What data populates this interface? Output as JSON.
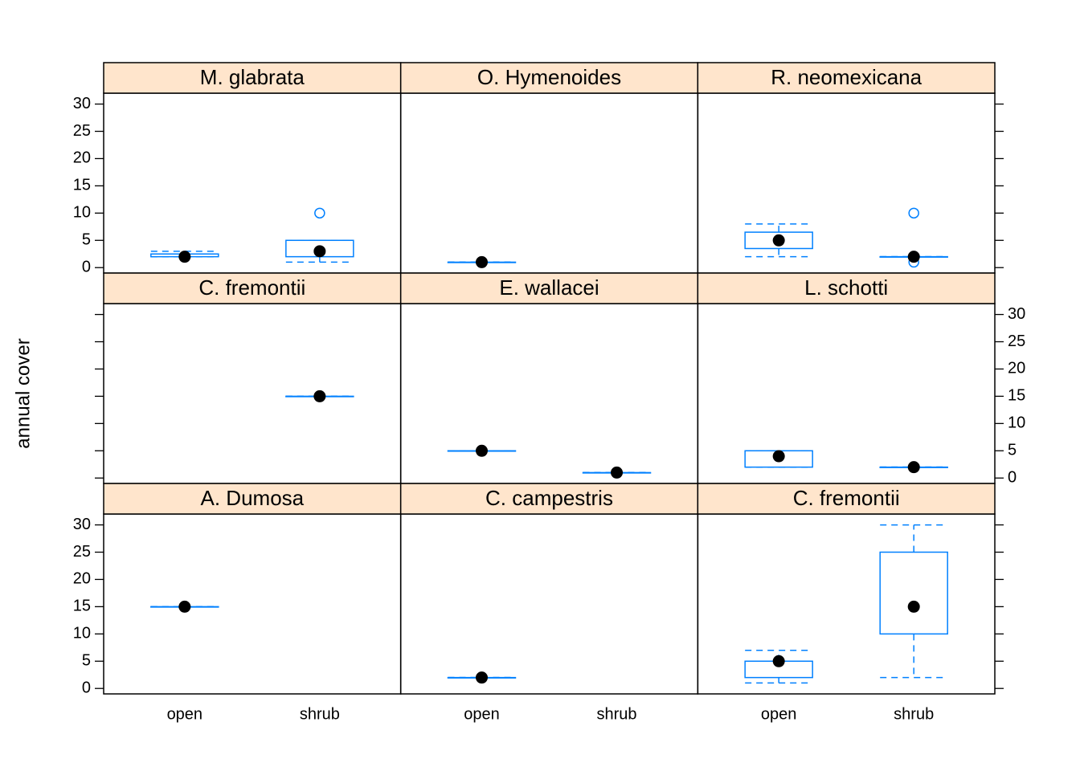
{
  "chart_data": {
    "type": "box",
    "ylabel": "annual cover",
    "categories": [
      "open",
      "shrub"
    ],
    "ylim": [
      -1,
      32
    ],
    "yticks": [
      0,
      5,
      10,
      15,
      20,
      25,
      30
    ],
    "box_color": "#0080ff",
    "strip_color": "#ffe5cc",
    "median_color": "#000000",
    "panels": [
      {
        "title": "M. glabrata",
        "boxes": [
          {
            "min": 2,
            "q1": 2,
            "median": 2,
            "q3": 2.5,
            "max": 3,
            "outliers": []
          },
          {
            "min": 1,
            "q1": 2,
            "median": 3,
            "q3": 5,
            "max": 5,
            "outliers": [
              10
            ]
          }
        ]
      },
      {
        "title": "O. Hymenoides",
        "boxes": [
          {
            "min": 1,
            "q1": 1,
            "median": 1,
            "q3": 1,
            "max": 1,
            "outliers": []
          },
          null
        ]
      },
      {
        "title": "R. neomexicana",
        "boxes": [
          {
            "min": 2,
            "q1": 3.5,
            "median": 5,
            "q3": 6.5,
            "max": 8,
            "outliers": []
          },
          {
            "min": 2,
            "q1": 2,
            "median": 2,
            "q3": 2,
            "max": 2,
            "outliers": [
              10,
              1
            ]
          }
        ]
      },
      {
        "title": "C. fremontii",
        "boxes": [
          null,
          {
            "min": 15,
            "q1": 15,
            "median": 15,
            "q3": 15,
            "max": 15,
            "outliers": []
          }
        ]
      },
      {
        "title": "E. wallacei",
        "boxes": [
          {
            "min": 5,
            "q1": 5,
            "median": 5,
            "q3": 5,
            "max": 5,
            "outliers": []
          },
          {
            "min": 1,
            "q1": 1,
            "median": 1,
            "q3": 1,
            "max": 1,
            "outliers": []
          }
        ]
      },
      {
        "title": "L. schotti",
        "boxes": [
          {
            "min": 2,
            "q1": 2,
            "median": 4,
            "q3": 5,
            "max": 5,
            "outliers": []
          },
          {
            "min": 2,
            "q1": 2,
            "median": 2,
            "q3": 2,
            "max": 2,
            "outliers": []
          }
        ]
      },
      {
        "title": "A. Dumosa",
        "boxes": [
          {
            "min": 15,
            "q1": 15,
            "median": 15,
            "q3": 15,
            "max": 15,
            "outliers": []
          },
          null
        ]
      },
      {
        "title": "C. campestris",
        "boxes": [
          {
            "min": 2,
            "q1": 2,
            "median": 2,
            "q3": 2,
            "max": 2,
            "outliers": []
          },
          null
        ]
      },
      {
        "title": "C. fremontii",
        "boxes": [
          {
            "min": 1,
            "q1": 2,
            "median": 5,
            "q3": 5,
            "max": 7,
            "outliers": []
          },
          {
            "min": 2,
            "q1": 10,
            "median": 15,
            "q3": 25,
            "max": 30,
            "outliers": []
          }
        ]
      }
    ]
  }
}
